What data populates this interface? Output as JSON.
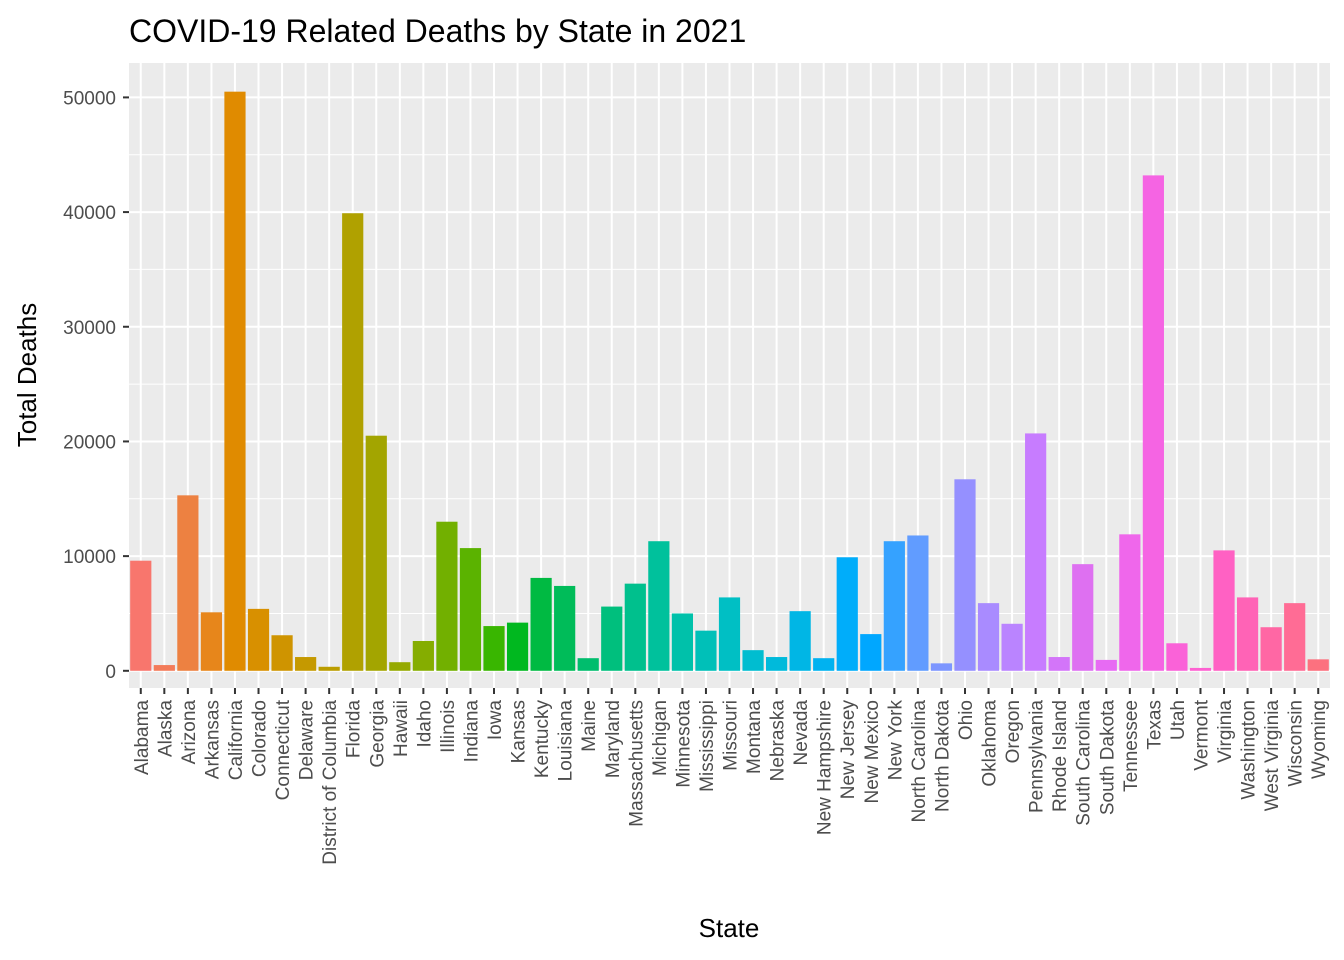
{
  "chart_data": {
    "type": "bar",
    "title": "COVID-19 Related Deaths by State in 2021",
    "xlabel": "State",
    "ylabel": "Total Deaths",
    "ylim": [
      -1500,
      53000
    ],
    "yticks": [
      0,
      10000,
      20000,
      30000,
      40000,
      50000
    ],
    "grid": true,
    "legend": "none",
    "categories": [
      "Alabama",
      "Alaska",
      "Arizona",
      "Arkansas",
      "California",
      "Colorado",
      "Connecticut",
      "Delaware",
      "District of Columbia",
      "Florida",
      "Georgia",
      "Hawaii",
      "Idaho",
      "Illinois",
      "Indiana",
      "Iowa",
      "Kansas",
      "Kentucky",
      "Louisiana",
      "Maine",
      "Maryland",
      "Massachusetts",
      "Michigan",
      "Minnesota",
      "Mississippi",
      "Missouri",
      "Montana",
      "Nebraska",
      "Nevada",
      "New Hampshire",
      "New Jersey",
      "New Mexico",
      "New York",
      "North Carolina",
      "North Dakota",
      "Ohio",
      "Oklahoma",
      "Oregon",
      "Pennsylvania",
      "Rhode Island",
      "South Carolina",
      "South Dakota",
      "Tennessee",
      "Texas",
      "Utah",
      "Vermont",
      "Virginia",
      "Washington",
      "West Virginia",
      "Wisconsin",
      "Wyoming"
    ],
    "values": [
      9600,
      500,
      15300,
      5100,
      50500,
      5400,
      3100,
      1200,
      350,
      39900,
      20500,
      750,
      2600,
      13000,
      10700,
      3900,
      4200,
      8100,
      7400,
      1100,
      5600,
      7600,
      11300,
      5000,
      3500,
      6400,
      1800,
      1200,
      5200,
      1100,
      9900,
      3200,
      11300,
      11800,
      650,
      16700,
      5900,
      4100,
      20700,
      1200,
      9300,
      950,
      11900,
      43200,
      2400,
      250,
      10500,
      6400,
      3800,
      5900,
      1000
    ],
    "colors": [
      "#F8766D",
      "#F37B59",
      "#ED8141",
      "#E7861B",
      "#E08B00",
      "#D89000",
      "#CF9400",
      "#C59900",
      "#BB9D00",
      "#B0A100",
      "#A3A500",
      "#95A900",
      "#85AD00",
      "#72B000",
      "#5BB300",
      "#39B600",
      "#00B81F",
      "#00BA42",
      "#00BC59",
      "#00BD6D",
      "#00BF7D",
      "#00C08D",
      "#00C19C",
      "#00C1AA",
      "#00C0B8",
      "#00BFC4",
      "#00BDD0",
      "#00BADB",
      "#00B6E5",
      "#00B2F0",
      "#00ADFA",
      "#00A7FF",
      "#35A2FF",
      "#619CFF",
      "#7D96FF",
      "#9590FF",
      "#A98BFF",
      "#BA84FF",
      "#C77CFF",
      "#D375F9",
      "#DE70F1",
      "#E76BF3",
      "#EF67EB",
      "#F564E3",
      "#FA62D8",
      "#FD61D1",
      "#FF61C3",
      "#FF63B6",
      "#FF67A4",
      "#FF6C95",
      "#FC717F"
    ]
  }
}
